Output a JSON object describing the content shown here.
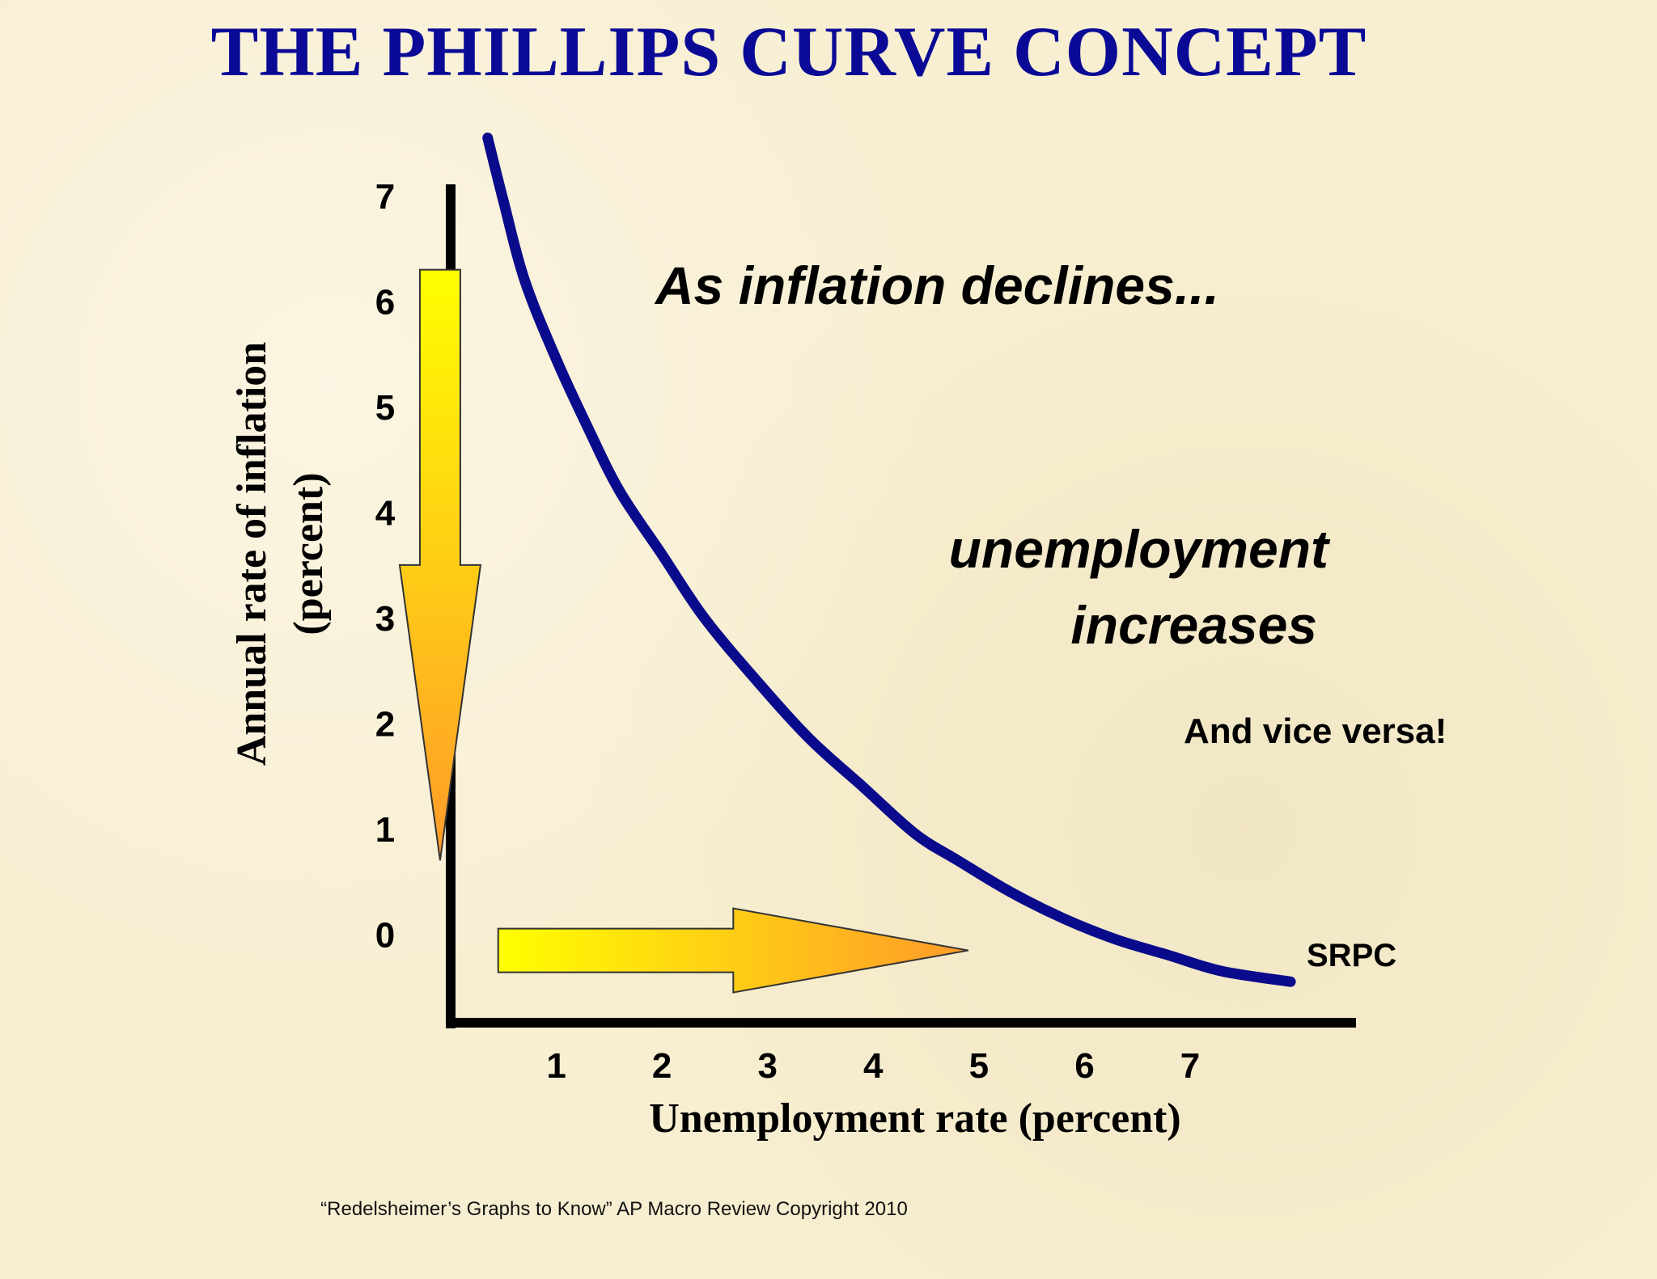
{
  "slide": {
    "title": "THE PHILLIPS CURVE CONCEPT",
    "footer": "“Redelsheimer’s Graphs to Know”  AP Macro Review Copyright 2010"
  },
  "chart_data": {
    "type": "line",
    "xlabel": "Unemployment rate (percent)",
    "ylabel_line1": "Annual rate of inflation",
    "ylabel_line2": "(percent)",
    "x_ticks": [
      1,
      2,
      3,
      4,
      5,
      6,
      7
    ],
    "y_ticks": [
      0,
      1,
      2,
      3,
      4,
      5,
      6,
      7
    ],
    "xlim": [
      0,
      8.7
    ],
    "ylim": [
      -0.9,
      7.5
    ],
    "series": [
      {
        "name": "SRPC",
        "color": "#0a0a8c",
        "x": [
          0.35,
          0.5,
          0.7,
          1.0,
          1.3,
          1.6,
          2.0,
          2.4,
          2.9,
          3.4,
          3.9,
          4.4,
          4.8,
          5.3,
          5.8,
          6.3,
          6.8,
          7.3,
          7.95
        ],
        "y": [
          7.55,
          6.95,
          6.2,
          5.45,
          4.8,
          4.2,
          3.6,
          3.0,
          2.4,
          1.85,
          1.4,
          0.95,
          0.7,
          0.4,
          0.15,
          -0.05,
          -0.2,
          -0.35,
          -0.45
        ]
      }
    ],
    "annotations": {
      "inflation_declines": "As inflation declines...",
      "unemployment_line1": "unemployment",
      "unemployment_line2": "increases",
      "vice_versa": "And vice versa!"
    },
    "arrows": {
      "down": {
        "x": -0.1,
        "y_from": 6.3,
        "y_to": 0.7,
        "meaning": "inflation declines"
      },
      "right": {
        "y": 0.0,
        "x_from": 0.45,
        "x_to": 4.9,
        "meaning": "unemployment increases"
      }
    },
    "arrow_colors": {
      "start": "#ffff00",
      "end": "#ff9a2a",
      "stroke": "#333333"
    },
    "grid": false
  }
}
